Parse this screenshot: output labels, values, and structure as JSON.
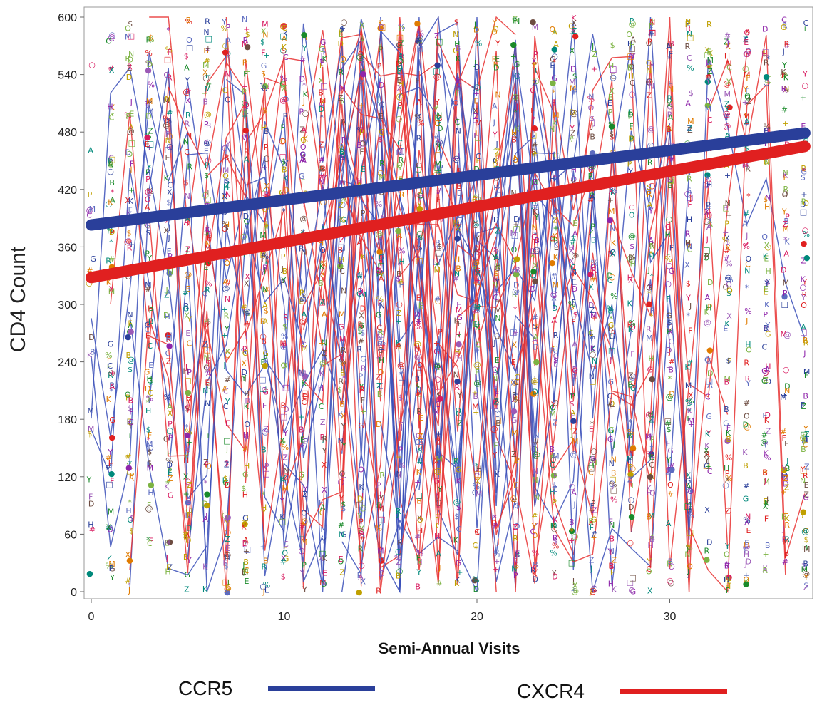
{
  "chart_data": {
    "type": "scatter",
    "xlabel": "Semi-Annual Visits",
    "ylabel": "CD4 Count",
    "xlim": [
      0,
      37
    ],
    "ylim": [
      0,
      600
    ],
    "x_ticks": [
      "0",
      "10",
      "20",
      "30"
    ],
    "y_ticks": [
      "0",
      "60",
      "120",
      "180",
      "240",
      "300",
      "360",
      "420",
      "480",
      "540",
      "600"
    ],
    "grid": false,
    "legend_position": "bottom",
    "scatter_note": "Individual patient CD4 counts at each visit plotted with letter/symbol markers; individual trajectories drawn as thin lines colored by tropism.",
    "series": [
      {
        "name": "CCR5",
        "color": "#2a3f9a",
        "trend_x": [
          0,
          37
        ],
        "trend_y": [
          383,
          479
        ]
      },
      {
        "name": "CXCR4",
        "color": "#e02020",
        "trend_x": [
          0,
          37
        ],
        "trend_y": [
          328,
          465
        ]
      }
    ],
    "legend": [
      {
        "label": "CCR5",
        "color": "#2a3f9a"
      },
      {
        "label": "CXCR4",
        "color": "#e02020"
      }
    ]
  }
}
